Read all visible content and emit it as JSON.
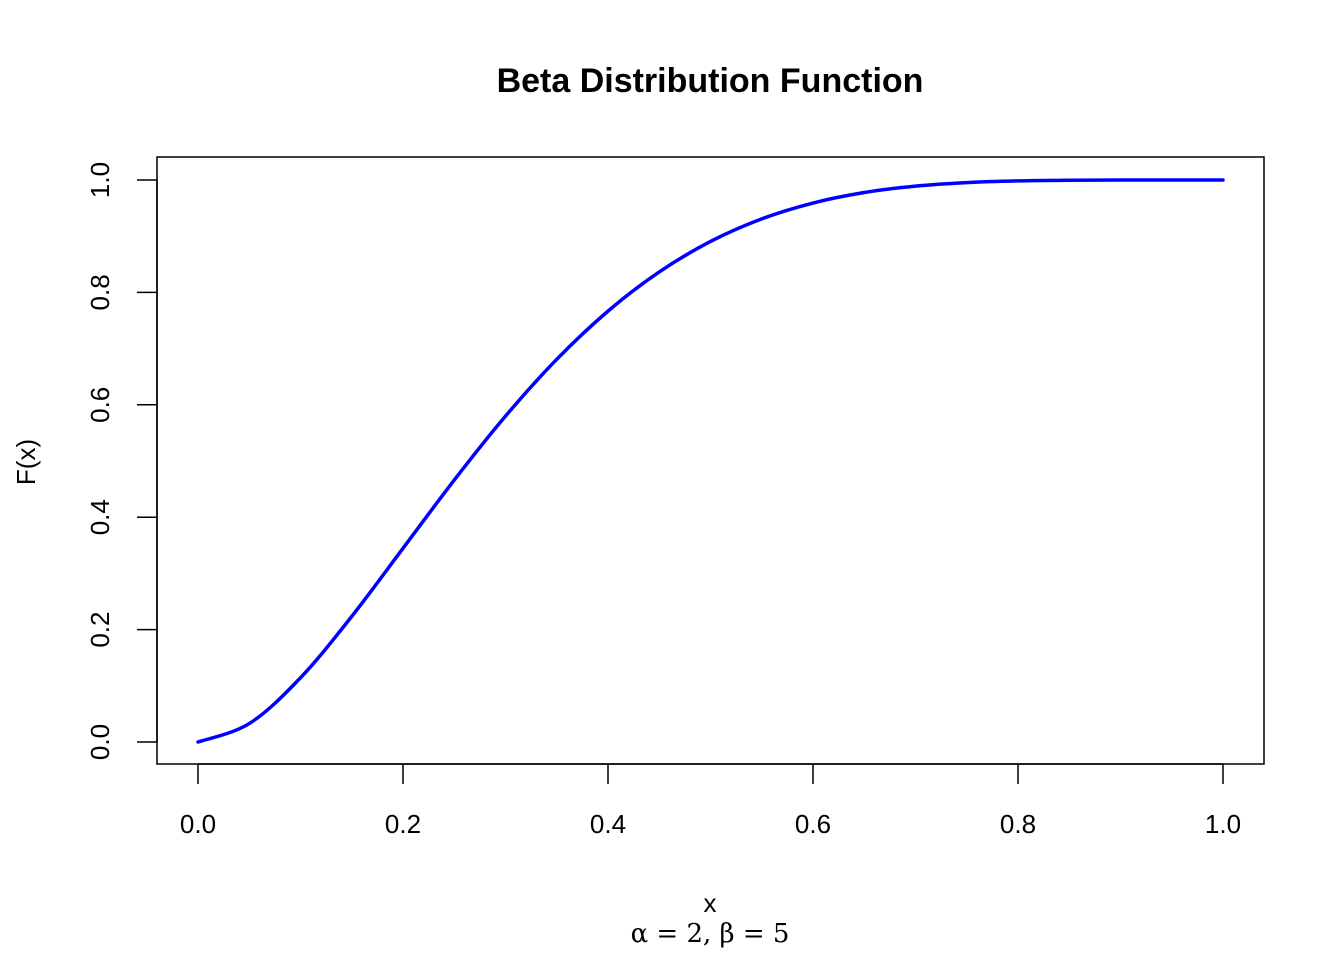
{
  "chart_data": {
    "type": "line",
    "title": "Beta Distribution Function",
    "xlabel": "x",
    "ylabel": "F(x)",
    "subtitle": "α = 2,  β = 5",
    "xlim": [
      0,
      1
    ],
    "ylim": [
      0,
      1
    ],
    "grid": false,
    "x_ticks": [
      0.0,
      0.2,
      0.4,
      0.6,
      0.8,
      1.0
    ],
    "x_tick_labels": [
      "0.0",
      "0.2",
      "0.4",
      "0.6",
      "0.8",
      "1.0"
    ],
    "y_ticks": [
      0.0,
      0.2,
      0.4,
      0.6,
      0.8,
      1.0
    ],
    "y_tick_labels": [
      "0.0",
      "0.2",
      "0.4",
      "0.6",
      "0.8",
      "1.0"
    ],
    "series": [
      {
        "color": "#0000ff",
        "x": [
          0.0,
          0.05,
          0.1,
          0.15,
          0.2,
          0.25,
          0.3,
          0.35,
          0.4,
          0.45,
          0.5,
          0.55,
          0.6,
          0.65,
          0.7,
          0.75,
          0.8,
          0.85,
          0.9,
          0.95,
          1.0
        ],
        "y": [
          0.0,
          0.0328,
          0.1143,
          0.2235,
          0.3446,
          0.4661,
          0.5798,
          0.6809,
          0.7667,
          0.8364,
          0.8906,
          0.9308,
          0.959,
          0.9777,
          0.9891,
          0.9954,
          0.9984,
          0.9996,
          0.9999,
          1.0,
          1.0
        ]
      }
    ]
  }
}
